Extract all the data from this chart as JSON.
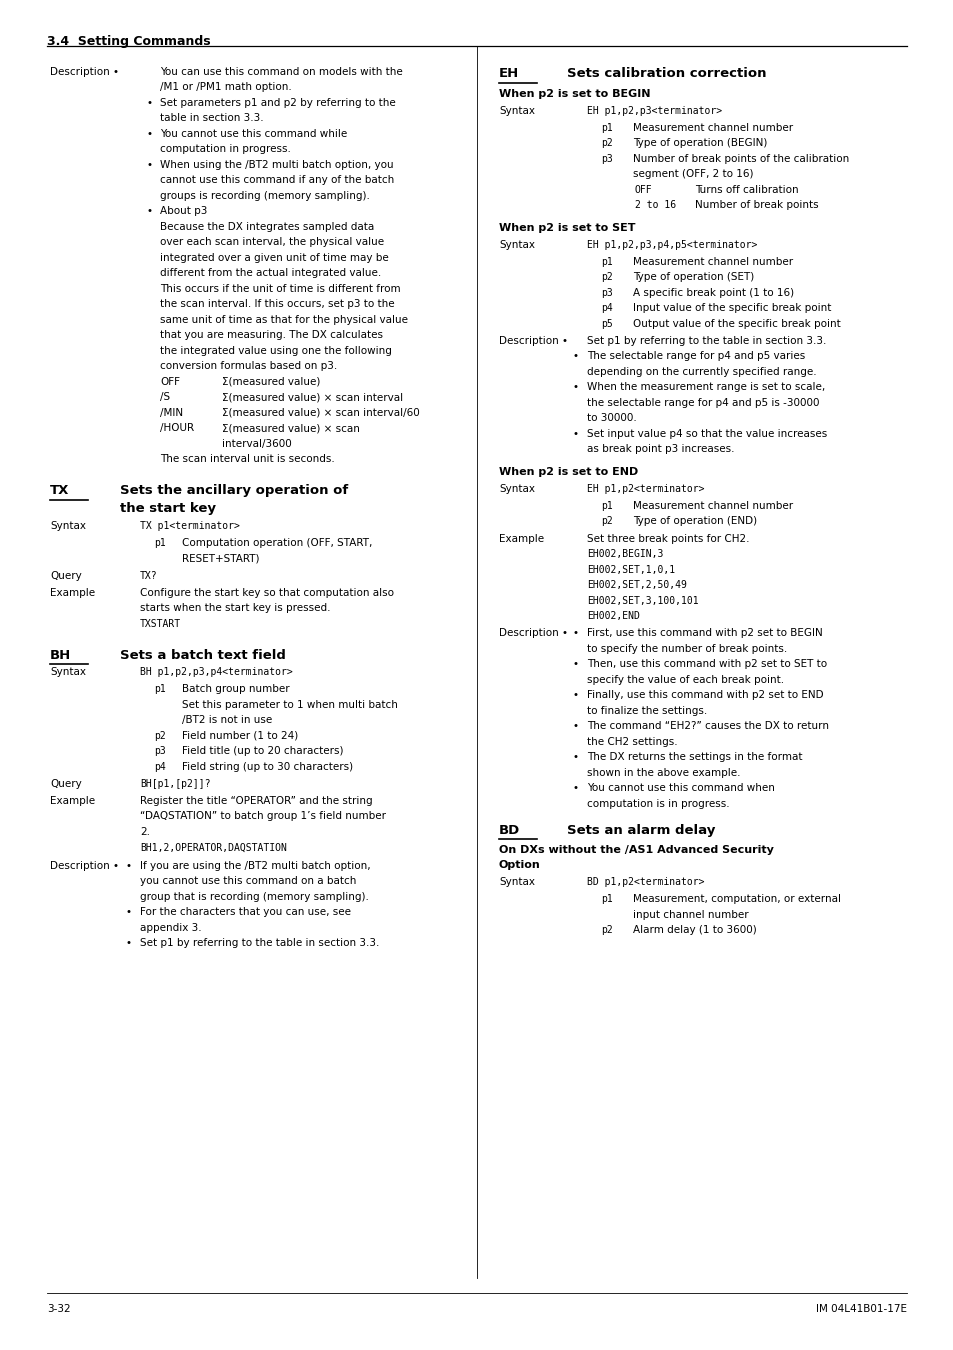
{
  "page_width": 9.54,
  "page_height": 13.5,
  "dpi": 100,
  "bg_color": "#ffffff",
  "header_text": "3.4  Setting Commands",
  "footer_left": "3-32",
  "footer_right": "IM 04L41B01-17E"
}
